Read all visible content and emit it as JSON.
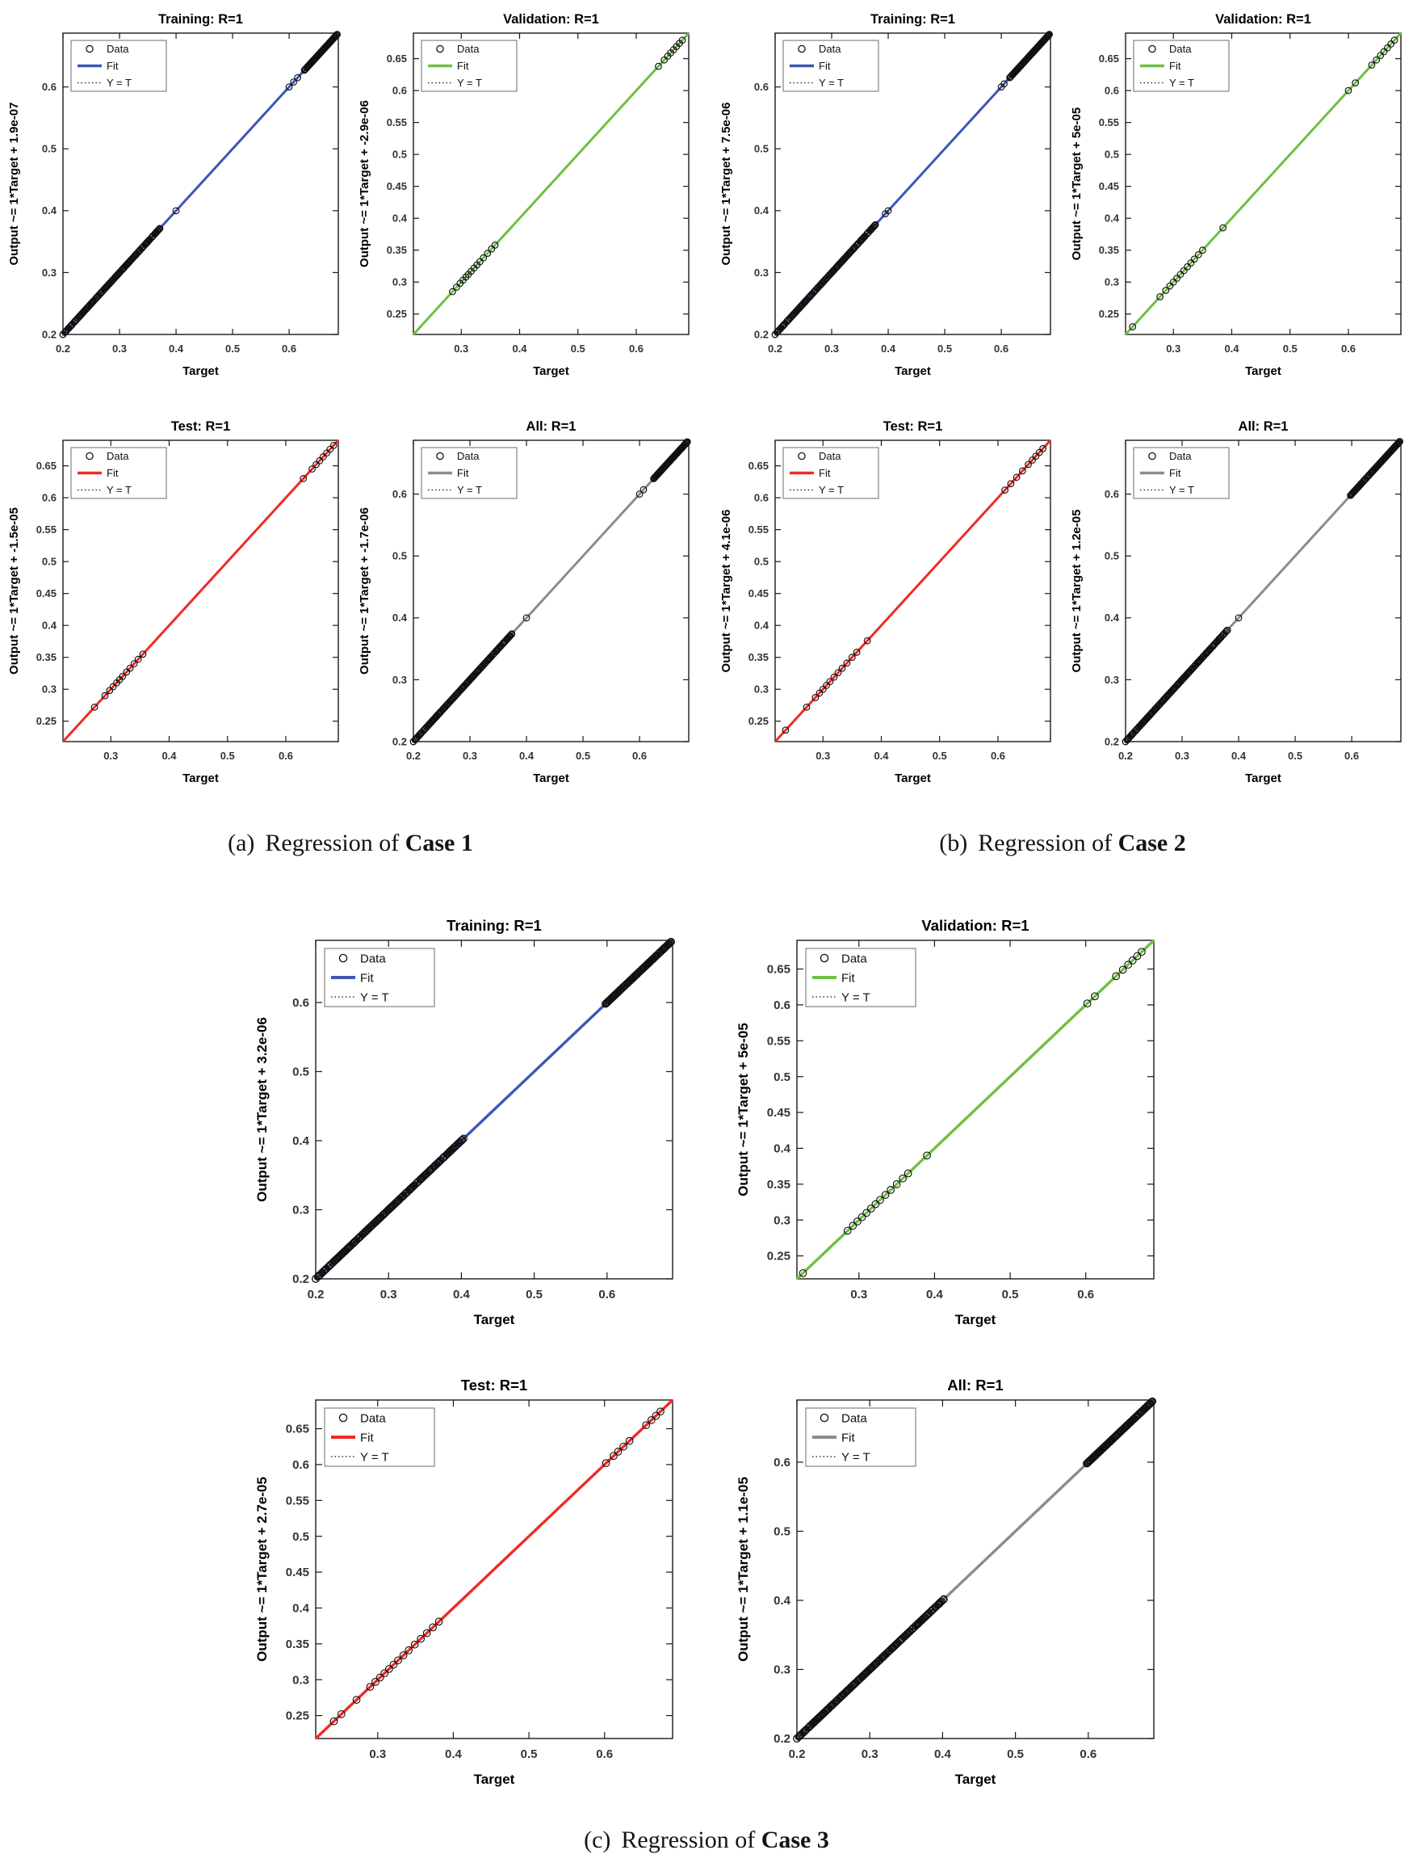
{
  "chart_data": {
    "type": "scatter",
    "description": "Neural network regression plots (Output vs Target) for three cases; all fits have R=1 along the identity line",
    "legend_labels": [
      "Data",
      "Fit",
      "Y = T"
    ],
    "palette": {
      "training_fit": "#3f56b5",
      "validation_fit": "#6fbf44",
      "test_fit": "#ee2c24",
      "all_fit": "#8c8c8c",
      "data_marker": "#111111",
      "identity_line": "#111111",
      "axes": "#1a1a1a",
      "tick_text": "#333333"
    },
    "figures": [
      {
        "caption": {
          "index": "(a)",
          "text": "Regression of",
          "strong": "Case 1"
        },
        "subplots": [
          {
            "title": "Training: R=1",
            "xlabel": "Target",
            "ylabel": "Output ~= 1*Target + 1.9e-07",
            "fit_color": "#3f56b5",
            "xlim": [
              0.2,
              0.687
            ],
            "ylim": [
              0.2,
              0.687
            ],
            "xticks": [
              0.2,
              0.3,
              0.4,
              0.5,
              0.6
            ],
            "yticks": [
              0.2,
              0.3,
              0.4,
              0.5,
              0.6
            ],
            "scatter": [
              {
                "from": 0.2,
                "to": 0.372,
                "n": 150
              },
              0.4,
              0.6,
              0.608,
              0.615,
              {
                "from": 0.627,
                "to": 0.685,
                "n": 80
              }
            ]
          },
          {
            "title": "Validation: R=1",
            "xlabel": "Target",
            "ylabel": "Output ~= 1*Target + -2.9e-06",
            "fit_color": "#6fbf44",
            "xlim": [
              0.218,
              0.69
            ],
            "ylim": [
              0.218,
              0.69
            ],
            "xticks": [
              0.3,
              0.4,
              0.5,
              0.6
            ],
            "yticks": [
              0.25,
              0.3,
              0.35,
              0.4,
              0.45,
              0.5,
              0.55,
              0.6,
              0.65
            ],
            "scatter": [
              0.285,
              0.292,
              0.298,
              0.303,
              0.308,
              0.312,
              0.317,
              0.322,
              0.327,
              0.332,
              0.338,
              0.345,
              0.352,
              0.358,
              0.638,
              0.648,
              0.654,
              0.659,
              0.664,
              0.669,
              0.674,
              0.679
            ]
          },
          {
            "title": "Test: R=1",
            "xlabel": "Target",
            "ylabel": "Output ~= 1*Target + -1.5e-05",
            "fit_color": "#ee2c24",
            "xlim": [
              0.218,
              0.69
            ],
            "ylim": [
              0.218,
              0.69
            ],
            "xticks": [
              0.3,
              0.4,
              0.5,
              0.6
            ],
            "yticks": [
              0.25,
              0.3,
              0.35,
              0.4,
              0.45,
              0.5,
              0.55,
              0.6,
              0.65
            ],
            "scatter": [
              0.272,
              0.29,
              0.298,
              0.304,
              0.31,
              0.315,
              0.32,
              0.327,
              0.333,
              0.34,
              0.347,
              0.355,
              0.63,
              0.645,
              0.652,
              0.658,
              0.664,
              0.67,
              0.676,
              0.682
            ]
          },
          {
            "title": "All: R=1",
            "xlabel": "Target",
            "ylabel": "Output ~= 1*Target + -1.7e-06",
            "fit_color": "#8c8c8c",
            "xlim": [
              0.2,
              0.687
            ],
            "ylim": [
              0.2,
              0.687
            ],
            "xticks": [
              0.2,
              0.3,
              0.4,
              0.5,
              0.6
            ],
            "yticks": [
              0.2,
              0.3,
              0.4,
              0.5,
              0.6
            ],
            "scatter": [
              {
                "from": 0.2,
                "to": 0.375,
                "n": 170
              },
              0.4,
              0.6,
              0.607,
              {
                "from": 0.625,
                "to": 0.685,
                "n": 100
              }
            ]
          }
        ]
      },
      {
        "caption": {
          "index": "(b)",
          "text": "Regression of",
          "strong": "Case 2"
        },
        "subplots": [
          {
            "title": "Training: R=1",
            "xlabel": "Target",
            "ylabel": "Output ~= 1*Target + 7.5e-06",
            "fit_color": "#3f56b5",
            "xlim": [
              0.2,
              0.687
            ],
            "ylim": [
              0.2,
              0.687
            ],
            "xticks": [
              0.2,
              0.3,
              0.4,
              0.5,
              0.6
            ],
            "yticks": [
              0.2,
              0.3,
              0.4,
              0.5,
              0.6
            ],
            "scatter": [
              {
                "from": 0.2,
                "to": 0.378,
                "n": 150
              },
              0.395,
              0.4,
              0.6,
              0.605,
              {
                "from": 0.615,
                "to": 0.685,
                "n": 85
              }
            ]
          },
          {
            "title": "Validation: R=1",
            "xlabel": "Target",
            "ylabel": "Output ~= 1*Target + 5e-05",
            "fit_color": "#6fbf44",
            "xlim": [
              0.218,
              0.69
            ],
            "ylim": [
              0.218,
              0.69
            ],
            "xticks": [
              0.3,
              0.4,
              0.5,
              0.6
            ],
            "yticks": [
              0.25,
              0.3,
              0.35,
              0.4,
              0.45,
              0.5,
              0.55,
              0.6,
              0.65
            ],
            "scatter": [
              0.23,
              0.277,
              0.287,
              0.294,
              0.3,
              0.306,
              0.312,
              0.318,
              0.324,
              0.33,
              0.336,
              0.343,
              0.35,
              0.385,
              0.6,
              0.612,
              0.64,
              0.648,
              0.655,
              0.661,
              0.667,
              0.673,
              0.679
            ]
          },
          {
            "title": "Test: R=1",
            "xlabel": "Target",
            "ylabel": "Output ~= 1*Target + 4.1e-06",
            "fit_color": "#ee2c24",
            "xlim": [
              0.218,
              0.69
            ],
            "ylim": [
              0.218,
              0.69
            ],
            "xticks": [
              0.3,
              0.4,
              0.5,
              0.6
            ],
            "yticks": [
              0.25,
              0.3,
              0.35,
              0.4,
              0.45,
              0.5,
              0.55,
              0.6,
              0.65
            ],
            "scatter": [
              0.236,
              0.272,
              0.287,
              0.294,
              0.3,
              0.306,
              0.312,
              0.319,
              0.326,
              0.333,
              0.341,
              0.35,
              0.358,
              0.376,
              0.612,
              0.622,
              0.632,
              0.642,
              0.652,
              0.659,
              0.665,
              0.671,
              0.677
            ]
          },
          {
            "title": "All: R=1",
            "xlabel": "Target",
            "ylabel": "Output ~= 1*Target + 1.2e-05",
            "fit_color": "#8c8c8c",
            "xlim": [
              0.2,
              0.687
            ],
            "ylim": [
              0.2,
              0.687
            ],
            "xticks": [
              0.2,
              0.3,
              0.4,
              0.5,
              0.6
            ],
            "yticks": [
              0.2,
              0.3,
              0.4,
              0.5,
              0.6
            ],
            "scatter": [
              {
                "from": 0.2,
                "to": 0.38,
                "n": 180
              },
              0.4,
              {
                "from": 0.598,
                "to": 0.685,
                "n": 110
              }
            ]
          }
        ]
      },
      {
        "caption": {
          "index": "(c)",
          "text": "Regression of",
          "strong": "Case 3"
        },
        "subplots": [
          {
            "title": "Training: R=1",
            "xlabel": "Target",
            "ylabel": "Output ~= 1*Target + 3.2e-06",
            "fit_color": "#3f56b5",
            "xlim": [
              0.2,
              0.69
            ],
            "ylim": [
              0.2,
              0.69
            ],
            "xticks": [
              0.2,
              0.3,
              0.4,
              0.5,
              0.6
            ],
            "yticks": [
              0.2,
              0.3,
              0.4,
              0.5,
              0.6
            ],
            "scatter": [
              {
                "from": 0.2,
                "to": 0.403,
                "n": 200
              },
              {
                "from": 0.598,
                "to": 0.688,
                "n": 120
              }
            ]
          },
          {
            "title": "Validation: R=1",
            "xlabel": "Target",
            "ylabel": "Output ~= 1*Target + 5e-05",
            "fit_color": "#6fbf44",
            "xlim": [
              0.218,
              0.69
            ],
            "ylim": [
              0.218,
              0.69
            ],
            "xticks": [
              0.3,
              0.4,
              0.5,
              0.6
            ],
            "yticks": [
              0.25,
              0.3,
              0.35,
              0.4,
              0.45,
              0.5,
              0.55,
              0.6,
              0.65
            ],
            "scatter": [
              0.226,
              0.285,
              0.292,
              0.298,
              0.304,
              0.31,
              0.316,
              0.322,
              0.328,
              0.335,
              0.342,
              0.35,
              0.358,
              0.365,
              0.39,
              0.602,
              0.612,
              0.64,
              0.649,
              0.656,
              0.662,
              0.668,
              0.674
            ]
          },
          {
            "title": "Test: R=1",
            "xlabel": "Target",
            "ylabel": "Output ~= 1*Target + 2.7e-05",
            "fit_color": "#ee2c24",
            "xlim": [
              0.218,
              0.69
            ],
            "ylim": [
              0.218,
              0.69
            ],
            "xticks": [
              0.3,
              0.4,
              0.5,
              0.6
            ],
            "yticks": [
              0.25,
              0.3,
              0.35,
              0.4,
              0.45,
              0.5,
              0.55,
              0.6,
              0.65
            ],
            "scatter": [
              0.242,
              0.252,
              0.272,
              0.29,
              0.297,
              0.303,
              0.309,
              0.315,
              0.321,
              0.327,
              0.334,
              0.341,
              0.349,
              0.357,
              0.365,
              0.373,
              0.381,
              0.602,
              0.612,
              0.618,
              0.625,
              0.633,
              0.655,
              0.662,
              0.668,
              0.674
            ]
          },
          {
            "title": "All: R=1",
            "xlabel": "Target",
            "ylabel": "Output ~= 1*Target + 1.1e-05",
            "fit_color": "#8c8c8c",
            "xlim": [
              0.2,
              0.69
            ],
            "ylim": [
              0.2,
              0.69
            ],
            "xticks": [
              0.2,
              0.3,
              0.4,
              0.5,
              0.6
            ],
            "yticks": [
              0.2,
              0.3,
              0.4,
              0.5,
              0.6
            ],
            "scatter": [
              {
                "from": 0.2,
                "to": 0.402,
                "n": 220
              },
              {
                "from": 0.598,
                "to": 0.688,
                "n": 130
              }
            ]
          }
        ]
      }
    ]
  }
}
